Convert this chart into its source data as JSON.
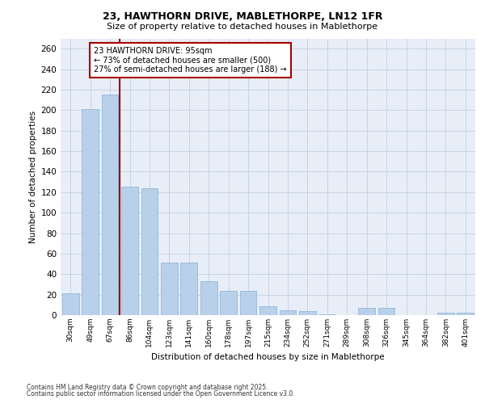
{
  "title_line1": "23, HAWTHORN DRIVE, MABLETHORPE, LN12 1FR",
  "title_line2": "Size of property relative to detached houses in Mablethorpe",
  "xlabel": "Distribution of detached houses by size in Mablethorpe",
  "ylabel": "Number of detached properties",
  "categories": [
    "30sqm",
    "49sqm",
    "67sqm",
    "86sqm",
    "104sqm",
    "123sqm",
    "141sqm",
    "160sqm",
    "178sqm",
    "197sqm",
    "215sqm",
    "234sqm",
    "252sqm",
    "271sqm",
    "289sqm",
    "308sqm",
    "326sqm",
    "345sqm",
    "364sqm",
    "382sqm",
    "401sqm"
  ],
  "values": [
    21,
    201,
    215,
    125,
    124,
    51,
    51,
    33,
    24,
    24,
    9,
    5,
    4,
    1,
    0,
    7,
    7,
    0,
    0,
    2,
    2
  ],
  "bar_color": "#b8d0ea",
  "bar_edge_color": "#8ab0d0",
  "grid_color": "#c8d4e4",
  "bg_color": "#e8eef8",
  "vline_color": "#990000",
  "annotation_text": "23 HAWTHORN DRIVE: 95sqm\n← 73% of detached houses are smaller (500)\n27% of semi-detached houses are larger (188) →",
  "annotation_box_color": "#aa0000",
  "footnote_line1": "Contains HM Land Registry data © Crown copyright and database right 2025.",
  "footnote_line2": "Contains public sector information licensed under the Open Government Licence v3.0.",
  "ylim": [
    0,
    270
  ],
  "yticks": [
    0,
    20,
    40,
    60,
    80,
    100,
    120,
    140,
    160,
    180,
    200,
    220,
    240,
    260
  ]
}
